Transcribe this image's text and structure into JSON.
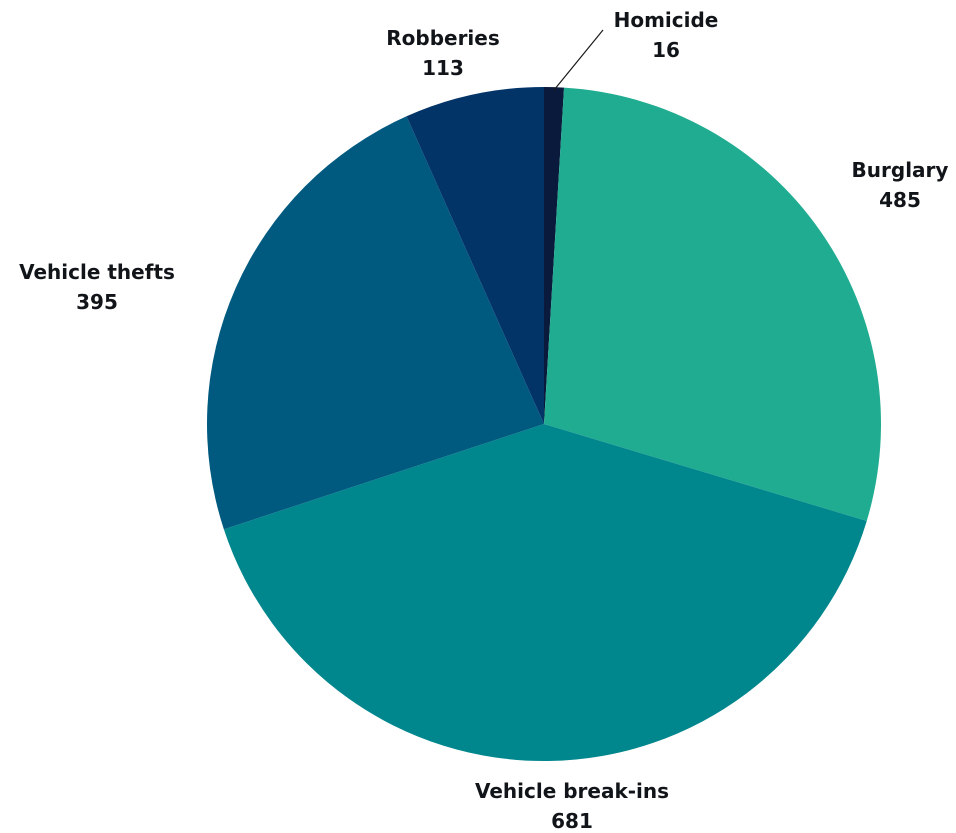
{
  "chart_data": {
    "type": "pie",
    "slices": [
      {
        "label": "Homicide",
        "value": 16,
        "color": "#0a1a3c"
      },
      {
        "label": "Burglary",
        "value": 485,
        "color": "#20ac91"
      },
      {
        "label": "Vehicle break-ins",
        "value": 681,
        "color": "#00868d"
      },
      {
        "label": "Vehicle thefts",
        "value": 395,
        "color": "#005a80"
      },
      {
        "label": "Robberies",
        "value": 113,
        "color": "#033468"
      }
    ],
    "start": "12 o'clock, clockwise",
    "data_labels": "outside, name above value"
  }
}
